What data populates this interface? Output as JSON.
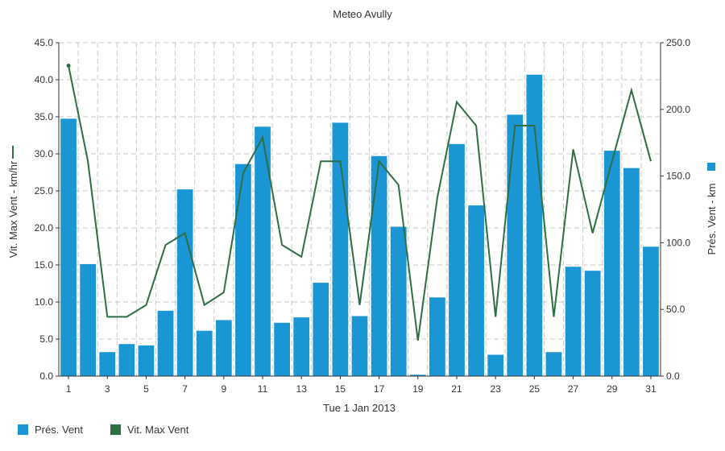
{
  "chart_data": {
    "type": "bar+line",
    "title": "Meteo  Avully",
    "xlabel": "Tue 1 Jan 2013",
    "ylabel_left": "Vit. Max Vent - km/hr",
    "ylabel_right": "Prés. Vent - km",
    "x": [
      1,
      2,
      3,
      4,
      5,
      6,
      7,
      8,
      9,
      10,
      11,
      12,
      13,
      14,
      15,
      16,
      17,
      18,
      19,
      20,
      21,
      22,
      23,
      24,
      25,
      26,
      27,
      28,
      29,
      30,
      31
    ],
    "x_ticks": [
      "1",
      "3",
      "5",
      "7",
      "9",
      "11",
      "13",
      "15",
      "17",
      "19",
      "21",
      "23",
      "25",
      "27",
      "29",
      "31"
    ],
    "ylim_left": [
      0,
      45
    ],
    "ylim_right": [
      0,
      250
    ],
    "y_ticks_left": [
      "0.0",
      "5.0",
      "10.0",
      "15.0",
      "20.0",
      "25.0",
      "30.0",
      "35.0",
      "40.0",
      "45.0"
    ],
    "y_ticks_right": [
      "0.0",
      "50.0",
      "100.0",
      "150.0",
      "200.0",
      "250.0"
    ],
    "grid": true,
    "legend_position": "bottom-left",
    "series": [
      {
        "name": "Prés. Vent",
        "type": "bar",
        "axis": "right",
        "color": "#1a96d4",
        "values": [
          193,
          84,
          18,
          24,
          23,
          49,
          140,
          34,
          42,
          159,
          187,
          40,
          44,
          70,
          190,
          45,
          165,
          112,
          1,
          59,
          174,
          128,
          16,
          196,
          226,
          18,
          82,
          79,
          169,
          156,
          97
        ]
      },
      {
        "name": "Vit. Max Vent",
        "type": "line",
        "axis": "left",
        "color": "#2e6e45",
        "values": [
          41.9,
          29.0,
          8.0,
          8.0,
          9.6,
          17.7,
          19.3,
          9.6,
          11.3,
          27.4,
          32.2,
          17.7,
          16.1,
          29.0,
          29.0,
          9.6,
          29.0,
          25.8,
          4.8,
          24.1,
          37.0,
          33.8,
          8.0,
          33.8,
          33.8,
          8.0,
          30.6,
          19.3,
          29.0,
          38.6,
          29.0
        ]
      }
    ]
  }
}
